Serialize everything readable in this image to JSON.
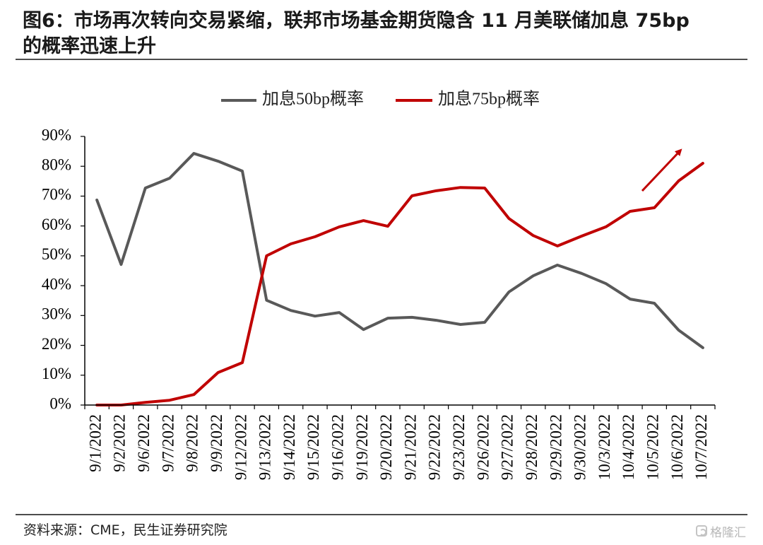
{
  "chart_data": {
    "type": "line",
    "title_lines": [
      "图6：市场再次转向交易紧缩，联邦市场基金期货隐含 11 月美联储加息 75bp",
      "的概率迅速上升"
    ],
    "xlabel": "",
    "ylabel": "",
    "ylim": [
      0,
      90
    ],
    "y_tick_labels": [
      "0%",
      "10%",
      "20%",
      "30%",
      "40%",
      "50%",
      "60%",
      "70%",
      "80%",
      "90%"
    ],
    "grid": false,
    "legend": "top-center",
    "categories": [
      "9/1/2022",
      "9/2/2022",
      "9/6/2022",
      "9/7/2022",
      "9/8/2022",
      "9/9/2022",
      "9/12/2022",
      "9/13/2022",
      "9/14/2022",
      "9/15/2022",
      "9/16/2022",
      "9/19/2022",
      "9/20/2022",
      "9/21/2022",
      "9/22/2022",
      "9/23/2022",
      "9/26/2022",
      "9/27/2022",
      "9/28/2022",
      "9/29/2022",
      "9/30/2022",
      "10/3/2022",
      "10/4/2022",
      "10/5/2022",
      "10/6/2022",
      "10/7/2022"
    ],
    "series": [
      {
        "name": "加息50bp概率",
        "color": "#595959",
        "values": [
          68.7,
          47.1,
          72.7,
          76.0,
          84.3,
          81.7,
          78.4,
          35.1,
          31.7,
          29.8,
          31.0,
          25.3,
          29.1,
          29.4,
          28.4,
          27.0,
          27.7,
          37.9,
          43.3,
          46.9,
          44.1,
          40.7,
          35.5,
          34.1,
          25.1,
          19.2
        ]
      },
      {
        "name": "加息75bp概率",
        "color": "#C00000",
        "values": [
          0.0,
          0.0,
          0.9,
          1.6,
          3.5,
          10.9,
          14.2,
          50.0,
          54.0,
          56.4,
          59.7,
          61.8,
          59.9,
          70.1,
          71.8,
          72.9,
          72.7,
          62.5,
          56.8,
          53.3,
          56.6,
          59.7,
          64.9,
          66.1,
          75.1,
          81.0
        ]
      }
    ]
  },
  "source": "资料来源：CME，民生证券研究院",
  "watermark": "格隆汇"
}
